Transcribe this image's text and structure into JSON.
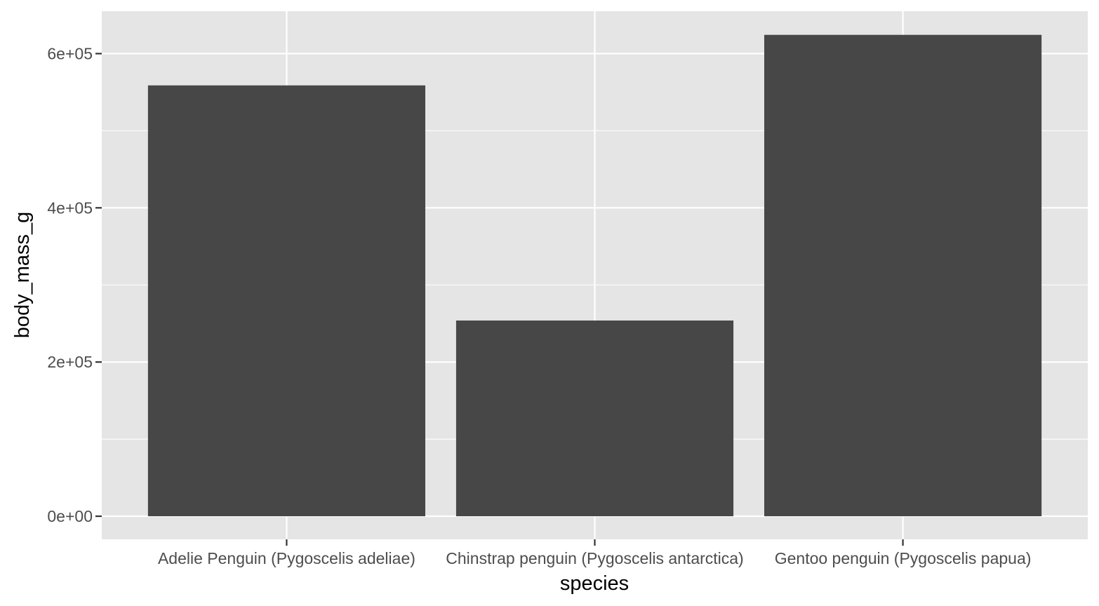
{
  "chart_data": {
    "type": "bar",
    "title": "",
    "xlabel": "species",
    "ylabel": "body_mass_g",
    "categories": [
      "Adelie Penguin (Pygoscelis adeliae)",
      "Chinstrap penguin (Pygoscelis antarctica)",
      "Gentoo penguin (Pygoscelis papua)"
    ],
    "values": [
      558800,
      253850,
      624350
    ],
    "ylim": [
      -30000,
      655000
    ],
    "yticks": [
      0,
      200000,
      400000,
      600000
    ],
    "ytick_labels": [
      "0e+00",
      "2e+05",
      "4e+05",
      "6e+05"
    ],
    "grid": true,
    "legend": "none",
    "colors": {
      "panel_background": "#e5e5e5",
      "grid": "#ffffff",
      "bar_fill": "#474747",
      "tick": "#333333"
    }
  }
}
